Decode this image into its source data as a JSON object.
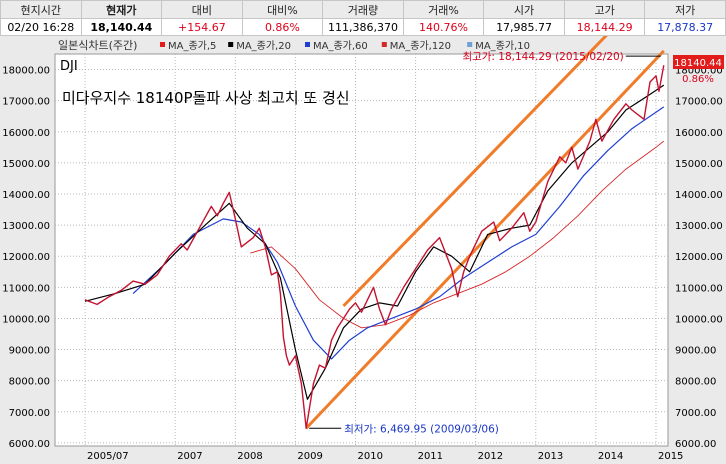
{
  "quote": {
    "headers": [
      "현지시간",
      "현재가",
      "대비",
      "대비%",
      "거래량",
      "거래%",
      "시가",
      "고가",
      "저가"
    ],
    "values": [
      "02/20  16:28",
      "18,140.44",
      "+154.67",
      "0.86%",
      "111,386,370",
      "140.76%",
      "17,985.77",
      "18,144.29",
      "17,878.37"
    ]
  },
  "legend": {
    "title": "일본식차트(주간)",
    "items": [
      {
        "label": "MA_종가,5",
        "color": "#e41a1c"
      },
      {
        "label": "MA_종가,20",
        "color": "#000000"
      },
      {
        "label": "MA_종가,60",
        "color": "#1f3fd0"
      },
      {
        "label": "MA_종가,120",
        "color": "#d62728"
      },
      {
        "label": "MA_종가,10",
        "color": "#6fa0d8"
      }
    ]
  },
  "chart_data": {
    "type": "line",
    "symbol": "DJI",
    "headline": "미다우지수 18140P돌파 사상 최고치 또 경신",
    "x_ticks": [
      "2005/07",
      "2007",
      "2008",
      "2009",
      "2010",
      "2011",
      "2012",
      "2013",
      "2014",
      "2015"
    ],
    "ylim": [
      5900,
      18500
    ],
    "y_ticks": [
      "6000.00",
      "7000.00",
      "8000.00",
      "9000.00",
      "10000.00",
      "11000.00",
      "12000.00",
      "13000.00",
      "14000.00",
      "15000.00",
      "16000.00",
      "17000.00",
      "18000.00"
    ],
    "series": [
      {
        "name": "종가",
        "values": [
          [
            2005.5,
            10600
          ],
          [
            2005.7,
            10450
          ],
          [
            2005.9,
            10700
          ],
          [
            2006.1,
            10900
          ],
          [
            2006.3,
            11200
          ],
          [
            2006.5,
            11100
          ],
          [
            2006.7,
            11400
          ],
          [
            2006.9,
            12000
          ],
          [
            2007.1,
            12400
          ],
          [
            2007.2,
            12200
          ],
          [
            2007.4,
            12900
          ],
          [
            2007.6,
            13600
          ],
          [
            2007.7,
            13300
          ],
          [
            2007.8,
            13700
          ],
          [
            2007.9,
            14050
          ],
          [
            2008.0,
            13200
          ],
          [
            2008.1,
            12300
          ],
          [
            2008.3,
            12600
          ],
          [
            2008.4,
            12900
          ],
          [
            2008.5,
            12300
          ],
          [
            2008.6,
            11400
          ],
          [
            2008.7,
            11500
          ],
          [
            2008.75,
            10800
          ],
          [
            2008.8,
            9400
          ],
          [
            2008.85,
            8800
          ],
          [
            2008.9,
            8500
          ],
          [
            2009.0,
            8800
          ],
          [
            2009.1,
            7900
          ],
          [
            2009.18,
            6470
          ],
          [
            2009.3,
            7900
          ],
          [
            2009.4,
            8500
          ],
          [
            2009.5,
            8400
          ],
          [
            2009.6,
            9300
          ],
          [
            2009.7,
            9700
          ],
          [
            2009.9,
            10300
          ],
          [
            2010.0,
            10500
          ],
          [
            2010.1,
            10200
          ],
          [
            2010.3,
            11000
          ],
          [
            2010.4,
            10300
          ],
          [
            2010.5,
            9800
          ],
          [
            2010.6,
            10300
          ],
          [
            2010.8,
            11000
          ],
          [
            2011.0,
            11600
          ],
          [
            2011.2,
            12200
          ],
          [
            2011.4,
            12600
          ],
          [
            2011.5,
            12100
          ],
          [
            2011.6,
            11600
          ],
          [
            2011.7,
            10700
          ],
          [
            2011.8,
            11500
          ],
          [
            2011.9,
            12000
          ],
          [
            2012.1,
            12800
          ],
          [
            2012.3,
            13100
          ],
          [
            2012.4,
            12500
          ],
          [
            2012.6,
            12900
          ],
          [
            2012.8,
            13400
          ],
          [
            2012.9,
            12800
          ],
          [
            2013.0,
            13100
          ],
          [
            2013.2,
            14400
          ],
          [
            2013.4,
            15200
          ],
          [
            2013.5,
            15000
          ],
          [
            2013.6,
            15500
          ],
          [
            2013.7,
            14800
          ],
          [
            2013.9,
            15700
          ],
          [
            2014.0,
            16400
          ],
          [
            2014.1,
            15700
          ],
          [
            2014.3,
            16400
          ],
          [
            2014.5,
            16900
          ],
          [
            2014.6,
            16700
          ],
          [
            2014.8,
            16400
          ],
          [
            2014.9,
            17600
          ],
          [
            2015.0,
            17800
          ],
          [
            2015.05,
            17300
          ],
          [
            2015.13,
            18140
          ]
        ]
      },
      {
        "name": "MA_종가,20",
        "values": [
          [
            2005.5,
            10550
          ],
          [
            2006.0,
            10800
          ],
          [
            2006.5,
            11100
          ],
          [
            2007.0,
            12100
          ],
          [
            2007.5,
            13000
          ],
          [
            2007.9,
            13700
          ],
          [
            2008.2,
            12900
          ],
          [
            2008.5,
            12400
          ],
          [
            2008.75,
            11300
          ],
          [
            2009.0,
            9000
          ],
          [
            2009.2,
            7400
          ],
          [
            2009.5,
            8400
          ],
          [
            2009.8,
            9700
          ],
          [
            2010.1,
            10300
          ],
          [
            2010.4,
            10500
          ],
          [
            2010.7,
            10400
          ],
          [
            2011.0,
            11500
          ],
          [
            2011.3,
            12300
          ],
          [
            2011.6,
            12000
          ],
          [
            2011.9,
            11500
          ],
          [
            2012.2,
            12700
          ],
          [
            2012.6,
            12900
          ],
          [
            2012.9,
            13000
          ],
          [
            2013.2,
            14100
          ],
          [
            2013.6,
            15000
          ],
          [
            2013.9,
            15500
          ],
          [
            2014.2,
            16000
          ],
          [
            2014.5,
            16700
          ],
          [
            2014.9,
            17200
          ],
          [
            2015.13,
            17500
          ]
        ]
      },
      {
        "name": "MA_종가,60",
        "values": [
          [
            2006.3,
            10800
          ],
          [
            2006.8,
            11700
          ],
          [
            2007.3,
            12700
          ],
          [
            2007.8,
            13200
          ],
          [
            2008.1,
            13100
          ],
          [
            2008.4,
            12700
          ],
          [
            2008.7,
            11800
          ],
          [
            2009.0,
            10400
          ],
          [
            2009.3,
            9300
          ],
          [
            2009.6,
            8700
          ],
          [
            2009.9,
            9300
          ],
          [
            2010.2,
            9700
          ],
          [
            2010.6,
            10000
          ],
          [
            2011.0,
            10300
          ],
          [
            2011.4,
            10700
          ],
          [
            2011.8,
            11300
          ],
          [
            2012.2,
            11800
          ],
          [
            2012.6,
            12300
          ],
          [
            2013.0,
            12700
          ],
          [
            2013.4,
            13600
          ],
          [
            2013.8,
            14600
          ],
          [
            2014.2,
            15400
          ],
          [
            2014.6,
            16100
          ],
          [
            2015.13,
            16800
          ]
        ]
      },
      {
        "name": "MA_종가,120",
        "values": [
          [
            2008.25,
            12100
          ],
          [
            2008.6,
            12300
          ],
          [
            2009.0,
            11600
          ],
          [
            2009.4,
            10600
          ],
          [
            2009.8,
            10000
          ],
          [
            2010.1,
            9700
          ],
          [
            2010.5,
            9800
          ],
          [
            2010.9,
            10100
          ],
          [
            2011.3,
            10500
          ],
          [
            2011.7,
            10800
          ],
          [
            2012.1,
            11100
          ],
          [
            2012.5,
            11500
          ],
          [
            2012.9,
            12000
          ],
          [
            2013.3,
            12600
          ],
          [
            2013.7,
            13300
          ],
          [
            2014.1,
            14100
          ],
          [
            2014.5,
            14800
          ],
          [
            2015.0,
            15500
          ],
          [
            2015.13,
            15700
          ]
        ]
      }
    ],
    "channels": [
      {
        "from": [
          2009.18,
          6470
        ],
        "to": [
          2015.13,
          18600
        ]
      },
      {
        "from": [
          2009.8,
          10400
        ],
        "to": [
          2015.13,
          21000
        ]
      }
    ],
    "annotations": {
      "high": {
        "text": "최고가: 18,144.29 (2015/02/20)",
        "x": 2015.13,
        "y": 18144
      },
      "low": {
        "text": "최저가: 6,469.95 (2009/03/06)",
        "x": 2009.18,
        "y": 6470
      }
    },
    "current_price": {
      "price": "18140.44",
      "change": "0.86%"
    }
  }
}
